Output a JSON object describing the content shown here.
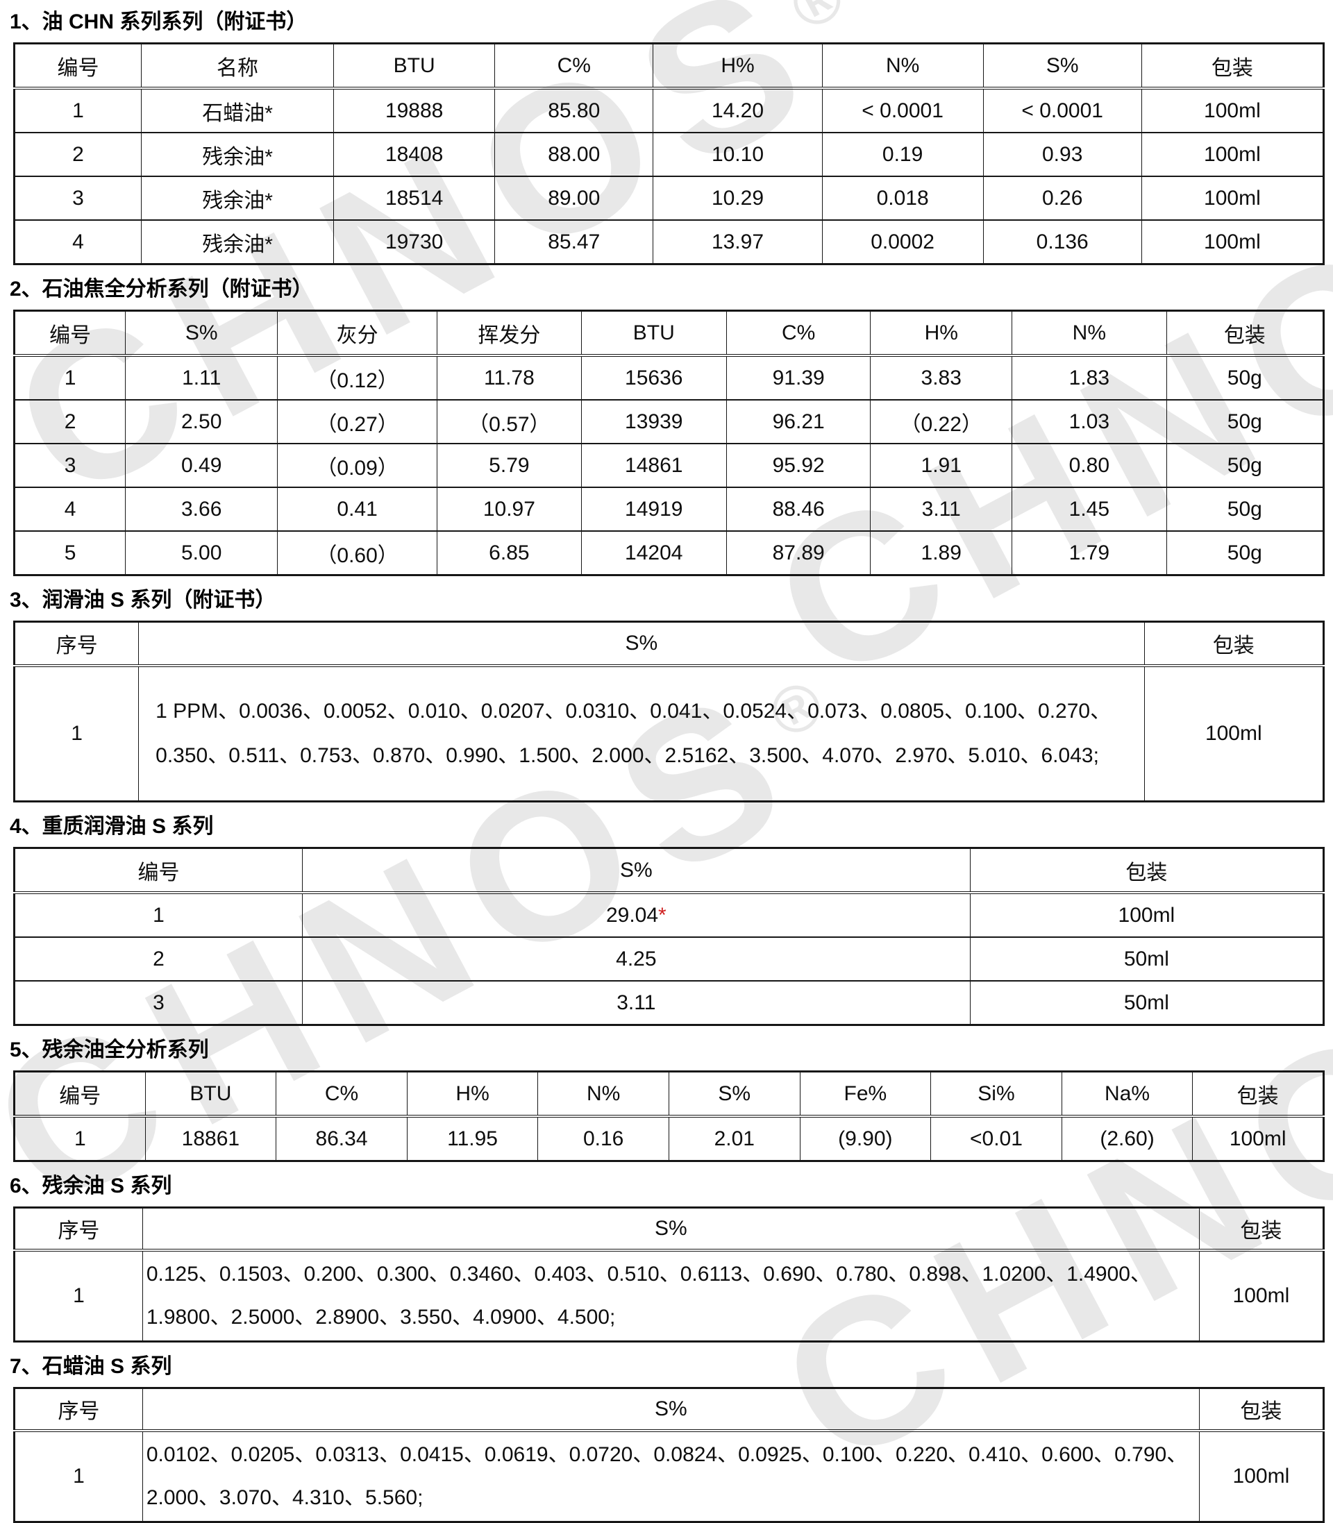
{
  "watermark": {
    "brand": "CHNOS",
    "registered": "®"
  },
  "sections": [
    {
      "title": "1、油 CHN 系列系列（附证书）",
      "headers": [
        "编号",
        "名称",
        "BTU",
        "C%",
        "H%",
        "N%",
        "S%",
        "包装"
      ],
      "rows": [
        [
          "1",
          "石蜡油*",
          "19888",
          "85.80",
          "14.20",
          "< 0.0001",
          "< 0.0001",
          "100ml"
        ],
        [
          "2",
          "残余油*",
          "18408",
          "88.00",
          "10.10",
          "0.19",
          "0.93",
          "100ml"
        ],
        [
          "3",
          "残余油*",
          "18514",
          "89.00",
          "10.29",
          "0.018",
          "0.26",
          "100ml"
        ],
        [
          "4",
          "残余油*",
          "19730",
          "85.47",
          "13.97",
          "0.0002",
          "0.136",
          "100ml"
        ]
      ]
    },
    {
      "title": "2、石油焦全分析系列（附证书）",
      "headers": [
        "编号",
        "S%",
        "灰分",
        "挥发分",
        "BTU",
        "C%",
        "H%",
        "N%",
        "包装"
      ],
      "rows": [
        [
          "1",
          "1.11",
          "（0.12）",
          "11.78",
          "15636",
          "91.39",
          "3.83",
          "1.83",
          "50g"
        ],
        [
          "2",
          "2.50",
          "（0.27）",
          "（0.57）",
          "13939",
          "96.21",
          "（0.22）",
          "1.03",
          "50g"
        ],
        [
          "3",
          "0.49",
          "（0.09）",
          "5.79",
          "14861",
          "95.92",
          "1.91",
          "0.80",
          "50g"
        ],
        [
          "4",
          "3.66",
          "0.41",
          "10.97",
          "14919",
          "88.46",
          "3.11",
          "1.45",
          "50g"
        ],
        [
          "5",
          "5.00",
          "（0.60）",
          "6.85",
          "14204",
          "87.89",
          "1.89",
          "1.79",
          "50g"
        ]
      ]
    },
    {
      "title": "3、润滑油 S 系列（附证书）",
      "headers": [
        "序号",
        "S%",
        "包装"
      ],
      "rows": [
        [
          "1",
          "1 PPM、0.0036、0.0052、0.010、0.0207、0.0310、0.041、0.0524、0.073、0.0805、0.100、0.270、0.350、0.511、0.753、0.870、0.990、1.500、2.000、2.5162、3.500、4.070、2.970、5.010、6.043;",
          "100ml"
        ]
      ]
    },
    {
      "title": "4、重质润滑油 S 系列",
      "headers": [
        "编号",
        "S%",
        "包装"
      ],
      "rows": [
        [
          "1",
          {
            "text": "29.04",
            "star": "*"
          },
          "100ml"
        ],
        [
          "2",
          "4.25",
          "50ml"
        ],
        [
          "3",
          "3.11",
          "50ml"
        ]
      ]
    },
    {
      "title": "5、残余油全分析系列",
      "headers": [
        "编号",
        "BTU",
        "C%",
        "H%",
        "N%",
        "S%",
        "Fe%",
        "Si%",
        "Na%",
        "包装"
      ],
      "rows": [
        [
          "1",
          "18861",
          "86.34",
          "11.95",
          "0.16",
          "2.01",
          "(9.90)",
          "<0.01",
          "(2.60)",
          "100ml"
        ]
      ]
    },
    {
      "title": "6、残余油 S 系列",
      "headers": [
        "序号",
        "S%",
        "包装"
      ],
      "rows": [
        [
          "1",
          "0.125、0.1503、0.200、0.300、0.3460、0.403、0.510、0.6113、0.690、0.780、0.898、1.0200、1.4900、1.9800、2.5000、2.8900、3.550、4.0900、4.500;",
          "100ml"
        ]
      ]
    },
    {
      "title": "7、石蜡油 S 系列",
      "headers": [
        "序号",
        "S%",
        "包装"
      ],
      "rows": [
        [
          "1",
          "0.0102、0.0205、0.0313、0.0415、0.0619、0.0720、0.0824、0.0925、0.100、0.220、0.410、0.600、0.790、2.000、3.070、4.310、5.560;",
          "100ml"
        ]
      ]
    }
  ]
}
